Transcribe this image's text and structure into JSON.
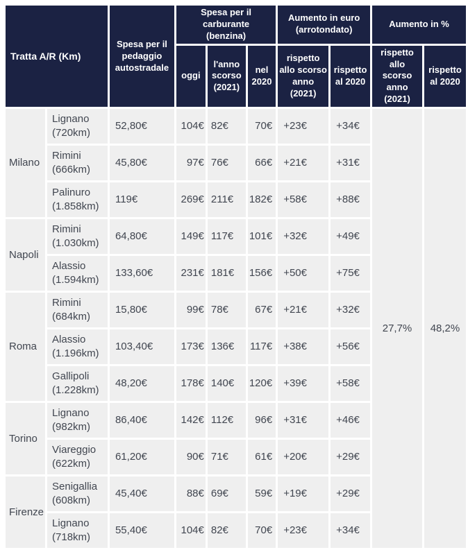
{
  "colors": {
    "header_bg": "#1b2243",
    "header_text": "#ffffff",
    "cell_bg": "#efefef",
    "cell_text": "#414650",
    "gap": "#ffffff"
  },
  "chart_data": {
    "type": "table",
    "header": {
      "tratta": "Tratta A/R (Km)",
      "pedaggio": "Spesa per il pedaggio autostradale",
      "carburante_group": [
        "Spesa per il carburante",
        "(benzina)"
      ],
      "aumento_euro_group": [
        "Aumento in euro",
        "(arrotondato)"
      ],
      "aumento_pct_group": "Aumento in %",
      "oggi": "oggi",
      "anno_scorso": "l'anno scorso (2021)",
      "nel_2020": "nel 2020",
      "rispetto_anno_euro": "rispetto allo scorso anno (2021)",
      "rispetto_2020_euro": "rispetto al 2020",
      "rispetto_anno_pct": "rispetto allo scorso anno (2021)",
      "rispetto_2020_pct": "rispetto al 2020"
    },
    "groups": [
      {
        "city": "Milano",
        "routes": [
          {
            "dest": "Lignano",
            "dist": "(720km)",
            "pedaggio": "52,80€",
            "oggi": "104€",
            "anno_scorso": "82€",
            "nel_2020": "70€",
            "diff_anno": "+23€",
            "diff_2020": "+34€"
          },
          {
            "dest": "Rimini",
            "dist": "(666km)",
            "pedaggio": "45,80€",
            "oggi": "97€",
            "anno_scorso": "76€",
            "nel_2020": "66€",
            "diff_anno": "+21€",
            "diff_2020": "+31€"
          },
          {
            "dest": "Palinuro",
            "dist": "(1.858km)",
            "pedaggio": "119€",
            "oggi": "269€",
            "anno_scorso": "211€",
            "nel_2020": "182€",
            "diff_anno": "+58€",
            "diff_2020": "+88€"
          }
        ]
      },
      {
        "city": "Napoli",
        "routes": [
          {
            "dest": "Rimini",
            "dist": "(1.030km)",
            "pedaggio": "64,80€",
            "oggi": "149€",
            "anno_scorso": "117€",
            "nel_2020": "101€",
            "diff_anno": "+32€",
            "diff_2020": "+49€"
          },
          {
            "dest": "Alassio",
            "dist": "(1.594km)",
            "pedaggio": "133,60€",
            "oggi": "231€",
            "anno_scorso": "181€",
            "nel_2020": "156€",
            "diff_anno": "+50€",
            "diff_2020": "+75€"
          }
        ]
      },
      {
        "city": "Roma",
        "routes": [
          {
            "dest": "Rimini",
            "dist": "(684km)",
            "pedaggio": "15,80€",
            "oggi": "99€",
            "anno_scorso": "78€",
            "nel_2020": "67€",
            "diff_anno": "+21€",
            "diff_2020": "+32€"
          },
          {
            "dest": "Alassio",
            "dist": "(1.196km)",
            "pedaggio": "103,40€",
            "oggi": "173€",
            "anno_scorso": "136€",
            "nel_2020": "117€",
            "diff_anno": "+38€",
            "diff_2020": "+56€"
          },
          {
            "dest": "Gallipoli",
            "dist": "(1.228km)",
            "pedaggio": "48,20€",
            "oggi": "178€",
            "anno_scorso": "140€",
            "nel_2020": "120€",
            "diff_anno": "+39€",
            "diff_2020": "+58€"
          }
        ]
      },
      {
        "city": "Torino",
        "routes": [
          {
            "dest": "Lignano",
            "dist": "(982km)",
            "pedaggio": "86,40€",
            "oggi": "142€",
            "anno_scorso": "112€",
            "nel_2020": "96€",
            "diff_anno": "+31€",
            "diff_2020": "+46€"
          },
          {
            "dest": "Viareggio",
            "dist": "(622km)",
            "pedaggio": "61,20€",
            "oggi": "90€",
            "anno_scorso": "71€",
            "nel_2020": "61€",
            "diff_anno": "+20€",
            "diff_2020": "+29€"
          }
        ]
      },
      {
        "city": "Firenze",
        "routes": [
          {
            "dest": "Senigallia",
            "dist": "(608km)",
            "pedaggio": "45,40€",
            "oggi": "88€",
            "anno_scorso": "69€",
            "nel_2020": "59€",
            "diff_anno": "+19€",
            "diff_2020": "+29€"
          },
          {
            "dest": "Lignano",
            "dist": "(718km)",
            "pedaggio": "55,40€",
            "oggi": "104€",
            "anno_scorso": "82€",
            "nel_2020": "70€",
            "diff_anno": "+23€",
            "diff_2020": "+34€"
          }
        ]
      }
    ],
    "totals": {
      "pct_vs_anno_scorso": "27,7%",
      "pct_vs_2020": "48,2%"
    }
  }
}
